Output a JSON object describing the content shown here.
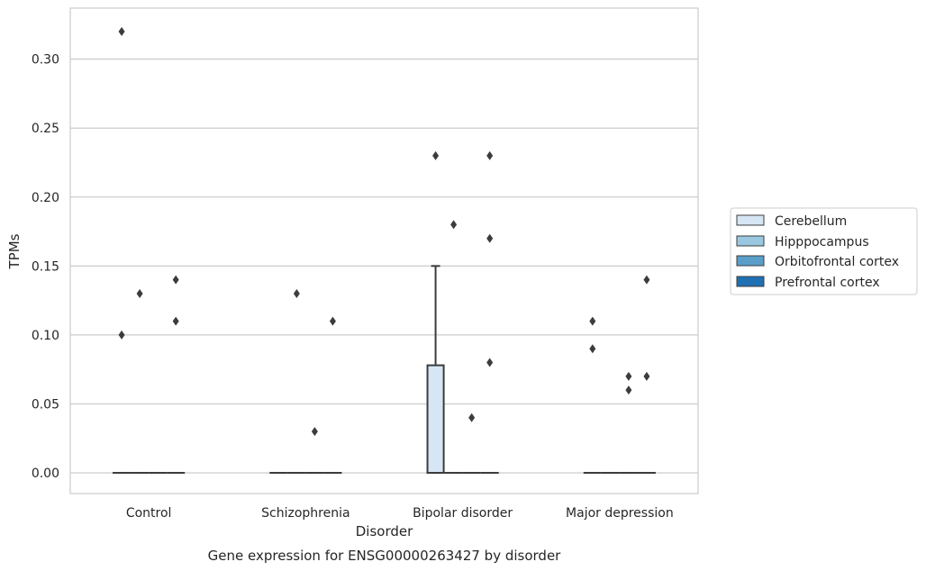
{
  "chart_data": {
    "type": "box",
    "xlabel": "Disorder",
    "ylabel": "TPMs",
    "caption": "Gene expression for ENSG00000263427 by disorder",
    "ylim": [
      -0.015,
      0.337
    ],
    "yticks": [
      "0.00",
      "0.05",
      "0.10",
      "0.15",
      "0.20",
      "0.25",
      "0.30"
    ],
    "ytick_values": [
      0,
      0.05,
      0.1,
      0.15,
      0.2,
      0.25,
      0.3
    ],
    "categories": [
      "Control",
      "Schizophrenia",
      "Bipolar disorder",
      "Major depression"
    ],
    "grid": true,
    "legend_position": "right",
    "series": [
      {
        "name": "Cerebellum",
        "color": "#d6e6f4",
        "boxes": [
          {
            "q1": 0,
            "median": 0,
            "q3": 0,
            "whisker_low": 0,
            "whisker_high": 0,
            "outliers": [
              0.1,
              0.32
            ]
          },
          {
            "q1": 0,
            "median": 0,
            "q3": 0,
            "whisker_low": 0,
            "whisker_high": 0,
            "outliers": []
          },
          {
            "q1": 0,
            "median": 0,
            "q3": 0.078,
            "whisker_low": 0,
            "whisker_high": 0.15,
            "outliers": [
              0.23
            ]
          },
          {
            "q1": 0,
            "median": 0,
            "q3": 0,
            "whisker_low": 0,
            "whisker_high": 0,
            "outliers": [
              0.11,
              0.09
            ]
          }
        ]
      },
      {
        "name": "Hipppocampus",
        "color": "#9ac8e0",
        "boxes": [
          {
            "q1": 0,
            "median": 0,
            "q3": 0,
            "whisker_low": 0,
            "whisker_high": 0,
            "outliers": [
              0.13
            ]
          },
          {
            "q1": 0,
            "median": 0,
            "q3": 0,
            "whisker_low": 0,
            "whisker_high": 0,
            "outliers": [
              0.13
            ]
          },
          {
            "q1": 0,
            "median": 0,
            "q3": 0,
            "whisker_low": 0,
            "whisker_high": 0,
            "outliers": [
              0.18
            ]
          },
          {
            "q1": 0,
            "median": 0,
            "q3": 0,
            "whisker_low": 0,
            "whisker_high": 0,
            "outliers": []
          }
        ]
      },
      {
        "name": "Orbitofrontal cortex",
        "color": "#5a9ec9",
        "boxes": [
          {
            "q1": 0,
            "median": 0,
            "q3": 0,
            "whisker_low": 0,
            "whisker_high": 0,
            "outliers": []
          },
          {
            "q1": 0,
            "median": 0,
            "q3": 0,
            "whisker_low": 0,
            "whisker_high": 0,
            "outliers": [
              0.03
            ]
          },
          {
            "q1": 0,
            "median": 0,
            "q3": 0,
            "whisker_low": 0,
            "whisker_high": 0,
            "outliers": [
              0.04
            ]
          },
          {
            "q1": 0,
            "median": 0,
            "q3": 0,
            "whisker_low": 0,
            "whisker_high": 0,
            "outliers": [
              0.07,
              0.06
            ]
          }
        ]
      },
      {
        "name": "Prefrontal cortex",
        "color": "#2070b4",
        "boxes": [
          {
            "q1": 0,
            "median": 0,
            "q3": 0,
            "whisker_low": 0,
            "whisker_high": 0,
            "outliers": [
              0.14,
              0.11
            ]
          },
          {
            "q1": 0,
            "median": 0,
            "q3": 0,
            "whisker_low": 0,
            "whisker_high": 0,
            "outliers": [
              0.11
            ]
          },
          {
            "q1": 0,
            "median": 0,
            "q3": 0,
            "whisker_low": 0,
            "whisker_high": 0,
            "outliers": [
              0.23,
              0.17,
              0.08
            ]
          },
          {
            "q1": 0,
            "median": 0,
            "q3": 0,
            "whisker_low": 0,
            "whisker_high": 0,
            "outliers": [
              0.14,
              0.07
            ]
          }
        ]
      }
    ]
  }
}
